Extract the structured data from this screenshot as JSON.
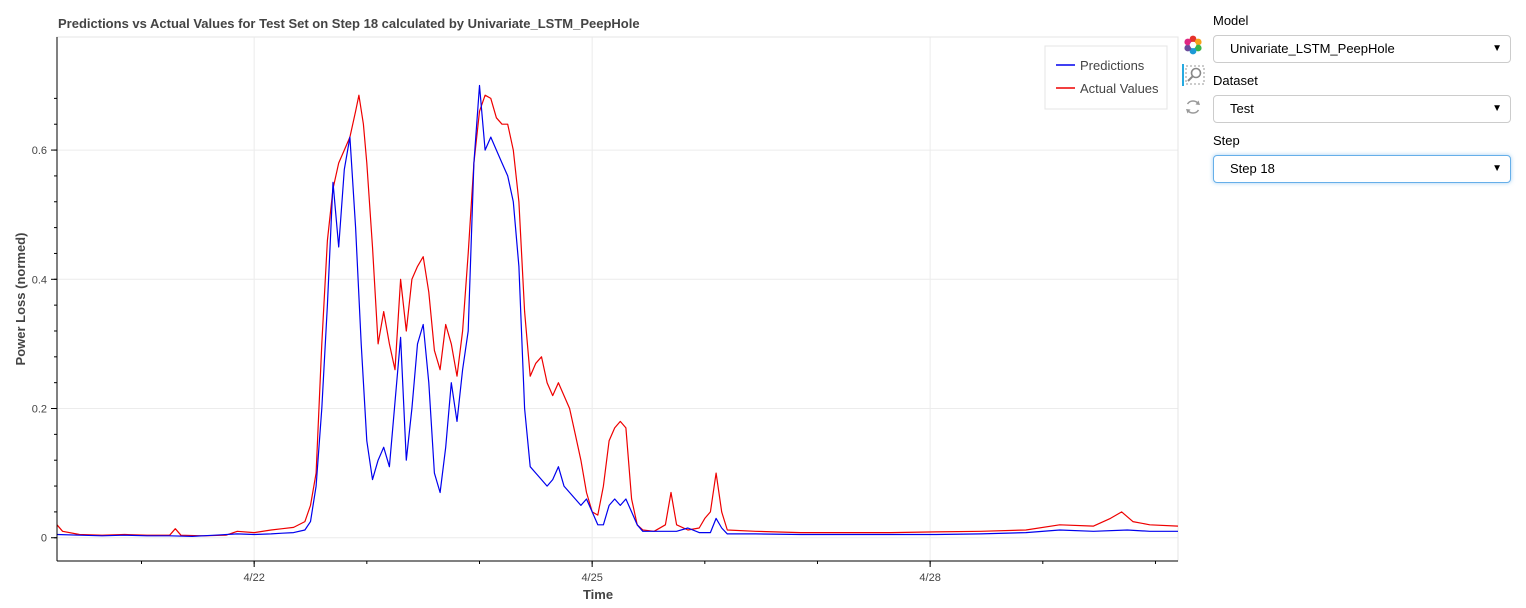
{
  "widgets": {
    "model": {
      "label": "Model",
      "value": "Univariate_LSTM_PeepHole"
    },
    "dataset": {
      "label": "Dataset",
      "value": "Test"
    },
    "step": {
      "label": "Step",
      "value": "Step 18"
    }
  },
  "toolbar": {
    "tools": [
      "bokeh-logo-icon",
      "zoom-icon",
      "reset-icon"
    ]
  },
  "colors": {
    "predictions": "#0000ee",
    "actual": "#ee0000",
    "grid": "#ececec",
    "active_tool": "#26aae1"
  },
  "chart_data": {
    "type": "line",
    "title": "Predictions vs Actual Values for Test Set on Step 18 calculated by Univariate_LSTM_PeepHole",
    "xlabel": "Time",
    "ylabel": "Power Loss (normed)",
    "xlim": [
      0,
      9.95
    ],
    "ylim": [
      -0.036,
      0.775
    ],
    "x_tick_labels": [
      {
        "x": 1.75,
        "label": "4/22"
      },
      {
        "x": 4.75,
        "label": "4/25"
      },
      {
        "x": 7.75,
        "label": "4/28"
      }
    ],
    "y_ticks": [
      0,
      0.2,
      0.4,
      0.6
    ],
    "y_tick_labels": [
      "0",
      "0.2",
      "0.4",
      "0.6"
    ],
    "grid": true,
    "legend_position": "top-right",
    "x_unit_note": "x measured in days from the plot's left edge (4/20 ~18:00)",
    "series": [
      {
        "name": "Predictions",
        "color": "#0000ee",
        "points": [
          [
            0,
            0.005
          ],
          [
            0.2,
            0.004
          ],
          [
            0.4,
            0.003
          ],
          [
            0.6,
            0.004
          ],
          [
            0.8,
            0.003
          ],
          [
            1.0,
            0.003
          ],
          [
            1.2,
            0.002
          ],
          [
            1.4,
            0.004
          ],
          [
            1.6,
            0.006
          ],
          [
            1.75,
            0.005
          ],
          [
            1.9,
            0.006
          ],
          [
            2.0,
            0.007
          ],
          [
            2.1,
            0.008
          ],
          [
            2.2,
            0.012
          ],
          [
            2.25,
            0.025
          ],
          [
            2.3,
            0.08
          ],
          [
            2.35,
            0.2
          ],
          [
            2.4,
            0.36
          ],
          [
            2.45,
            0.55
          ],
          [
            2.5,
            0.45
          ],
          [
            2.55,
            0.57
          ],
          [
            2.6,
            0.62
          ],
          [
            2.65,
            0.48
          ],
          [
            2.7,
            0.3
          ],
          [
            2.75,
            0.15
          ],
          [
            2.8,
            0.09
          ],
          [
            2.85,
            0.12
          ],
          [
            2.9,
            0.14
          ],
          [
            2.95,
            0.11
          ],
          [
            3.0,
            0.21
          ],
          [
            3.05,
            0.31
          ],
          [
            3.1,
            0.12
          ],
          [
            3.15,
            0.2
          ],
          [
            3.2,
            0.3
          ],
          [
            3.25,
            0.33
          ],
          [
            3.3,
            0.24
          ],
          [
            3.35,
            0.1
          ],
          [
            3.4,
            0.07
          ],
          [
            3.45,
            0.14
          ],
          [
            3.5,
            0.24
          ],
          [
            3.55,
            0.18
          ],
          [
            3.6,
            0.26
          ],
          [
            3.65,
            0.32
          ],
          [
            3.7,
            0.58
          ],
          [
            3.75,
            0.7
          ],
          [
            3.8,
            0.6
          ],
          [
            3.85,
            0.62
          ],
          [
            3.9,
            0.6
          ],
          [
            3.95,
            0.58
          ],
          [
            4.0,
            0.56
          ],
          [
            4.05,
            0.52
          ],
          [
            4.1,
            0.42
          ],
          [
            4.15,
            0.2
          ],
          [
            4.2,
            0.11
          ],
          [
            4.25,
            0.1
          ],
          [
            4.3,
            0.09
          ],
          [
            4.35,
            0.08
          ],
          [
            4.4,
            0.09
          ],
          [
            4.45,
            0.11
          ],
          [
            4.5,
            0.08
          ],
          [
            4.55,
            0.07
          ],
          [
            4.6,
            0.06
          ],
          [
            4.65,
            0.05
          ],
          [
            4.7,
            0.06
          ],
          [
            4.75,
            0.04
          ],
          [
            4.8,
            0.02
          ],
          [
            4.85,
            0.02
          ],
          [
            4.9,
            0.05
          ],
          [
            4.95,
            0.06
          ],
          [
            5.0,
            0.05
          ],
          [
            5.05,
            0.06
          ],
          [
            5.1,
            0.04
          ],
          [
            5.15,
            0.02
          ],
          [
            5.2,
            0.01
          ],
          [
            5.3,
            0.01
          ],
          [
            5.4,
            0.01
          ],
          [
            5.5,
            0.01
          ],
          [
            5.6,
            0.015
          ],
          [
            5.7,
            0.008
          ],
          [
            5.8,
            0.008
          ],
          [
            5.85,
            0.03
          ],
          [
            5.9,
            0.015
          ],
          [
            5.95,
            0.006
          ],
          [
            6.2,
            0.006
          ],
          [
            6.6,
            0.005
          ],
          [
            7.0,
            0.005
          ],
          [
            7.4,
            0.005
          ],
          [
            7.8,
            0.005
          ],
          [
            8.2,
            0.006
          ],
          [
            8.6,
            0.008
          ],
          [
            8.9,
            0.012
          ],
          [
            9.2,
            0.01
          ],
          [
            9.5,
            0.012
          ],
          [
            9.7,
            0.01
          ],
          [
            9.95,
            0.01
          ]
        ]
      },
      {
        "name": "Actual Values",
        "color": "#ee0000",
        "points": [
          [
            0,
            0.02
          ],
          [
            0.05,
            0.01
          ],
          [
            0.2,
            0.005
          ],
          [
            0.4,
            0.004
          ],
          [
            0.6,
            0.005
          ],
          [
            0.8,
            0.004
          ],
          [
            1.0,
            0.004
          ],
          [
            1.05,
            0.014
          ],
          [
            1.1,
            0.004
          ],
          [
            1.3,
            0.003
          ],
          [
            1.5,
            0.004
          ],
          [
            1.6,
            0.01
          ],
          [
            1.75,
            0.008
          ],
          [
            1.9,
            0.012
          ],
          [
            2.0,
            0.014
          ],
          [
            2.1,
            0.016
          ],
          [
            2.2,
            0.025
          ],
          [
            2.25,
            0.05
          ],
          [
            2.3,
            0.1
          ],
          [
            2.35,
            0.3
          ],
          [
            2.4,
            0.46
          ],
          [
            2.45,
            0.54
          ],
          [
            2.5,
            0.58
          ],
          [
            2.55,
            0.6
          ],
          [
            2.6,
            0.62
          ],
          [
            2.65,
            0.66
          ],
          [
            2.68,
            0.685
          ],
          [
            2.72,
            0.64
          ],
          [
            2.75,
            0.58
          ],
          [
            2.8,
            0.45
          ],
          [
            2.85,
            0.3
          ],
          [
            2.9,
            0.35
          ],
          [
            2.95,
            0.3
          ],
          [
            3.0,
            0.26
          ],
          [
            3.05,
            0.4
          ],
          [
            3.1,
            0.32
          ],
          [
            3.15,
            0.4
          ],
          [
            3.2,
            0.42
          ],
          [
            3.25,
            0.435
          ],
          [
            3.3,
            0.38
          ],
          [
            3.35,
            0.29
          ],
          [
            3.4,
            0.26
          ],
          [
            3.45,
            0.33
          ],
          [
            3.5,
            0.3
          ],
          [
            3.55,
            0.25
          ],
          [
            3.6,
            0.32
          ],
          [
            3.65,
            0.44
          ],
          [
            3.7,
            0.58
          ],
          [
            3.75,
            0.66
          ],
          [
            3.8,
            0.685
          ],
          [
            3.85,
            0.68
          ],
          [
            3.9,
            0.65
          ],
          [
            3.95,
            0.64
          ],
          [
            4.0,
            0.64
          ],
          [
            4.05,
            0.6
          ],
          [
            4.1,
            0.52
          ],
          [
            4.15,
            0.35
          ],
          [
            4.2,
            0.25
          ],
          [
            4.25,
            0.27
          ],
          [
            4.3,
            0.28
          ],
          [
            4.35,
            0.24
          ],
          [
            4.4,
            0.22
          ],
          [
            4.45,
            0.24
          ],
          [
            4.5,
            0.22
          ],
          [
            4.55,
            0.2
          ],
          [
            4.6,
            0.16
          ],
          [
            4.65,
            0.12
          ],
          [
            4.7,
            0.07
          ],
          [
            4.75,
            0.04
          ],
          [
            4.8,
            0.035
          ],
          [
            4.85,
            0.08
          ],
          [
            4.9,
            0.15
          ],
          [
            4.95,
            0.17
          ],
          [
            5.0,
            0.18
          ],
          [
            5.05,
            0.17
          ],
          [
            5.1,
            0.06
          ],
          [
            5.15,
            0.02
          ],
          [
            5.2,
            0.012
          ],
          [
            5.3,
            0.01
          ],
          [
            5.4,
            0.02
          ],
          [
            5.45,
            0.07
          ],
          [
            5.5,
            0.02
          ],
          [
            5.6,
            0.012
          ],
          [
            5.7,
            0.015
          ],
          [
            5.75,
            0.03
          ],
          [
            5.8,
            0.04
          ],
          [
            5.85,
            0.1
          ],
          [
            5.9,
            0.04
          ],
          [
            5.95,
            0.012
          ],
          [
            6.2,
            0.01
          ],
          [
            6.6,
            0.008
          ],
          [
            7.0,
            0.008
          ],
          [
            7.4,
            0.008
          ],
          [
            7.8,
            0.009
          ],
          [
            8.2,
            0.01
          ],
          [
            8.6,
            0.012
          ],
          [
            8.9,
            0.02
          ],
          [
            9.2,
            0.018
          ],
          [
            9.35,
            0.03
          ],
          [
            9.45,
            0.04
          ],
          [
            9.55,
            0.025
          ],
          [
            9.7,
            0.02
          ],
          [
            9.95,
            0.018
          ]
        ]
      }
    ]
  }
}
